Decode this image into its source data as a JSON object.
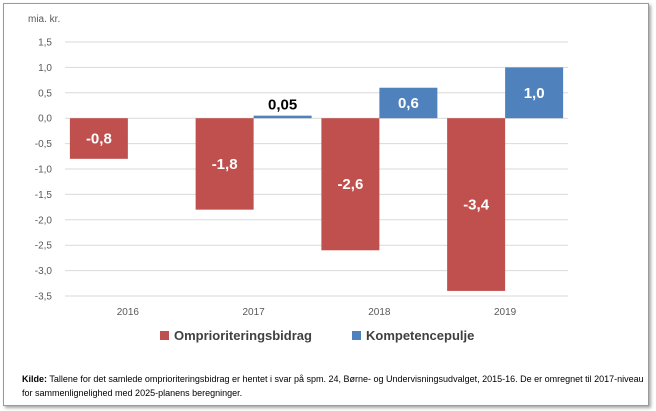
{
  "chart_data": {
    "type": "bar",
    "unit_label": "mia. kr.",
    "categories": [
      "2016",
      "2017",
      "2018",
      "2019"
    ],
    "series": [
      {
        "name": "Omprioriteringsbidrag",
        "color": "#c0504d",
        "values": [
          -0.8,
          -1.8,
          -2.6,
          -3.4
        ],
        "labels": [
          "-0,8",
          "-1,8",
          "-2,6",
          "-3,4"
        ]
      },
      {
        "name": "Kompetencepulje",
        "color": "#4f81bd",
        "values": [
          null,
          0.05,
          0.6,
          1.0
        ],
        "labels": [
          "",
          "0,05",
          "0,6",
          "1,0"
        ]
      }
    ],
    "ylim": [
      -3.5,
      1.5
    ],
    "yticks": [
      1.5,
      1.0,
      0.5,
      0.0,
      -0.5,
      -1.0,
      -1.5,
      -2.0,
      -2.5,
      -3.0,
      -3.5
    ],
    "ytick_labels": [
      "1,5",
      "1,0",
      "0,5",
      "0,0",
      "-0,5",
      "-1,0",
      "-1,5",
      "-2,0",
      "-2,5",
      "-3,0",
      "-3,5"
    ],
    "legend_position": "bottom",
    "grid": true
  },
  "source": {
    "label": "Kilde:",
    "text": "Tallene for det samlede omprioriteringsbidrag er hentet i svar på spm. 24, Børne- og Undervisningsudvalget, 2015-16. De er omregnet til 2017-niveau for sammenlignelighed med 2025-planens beregninger."
  }
}
